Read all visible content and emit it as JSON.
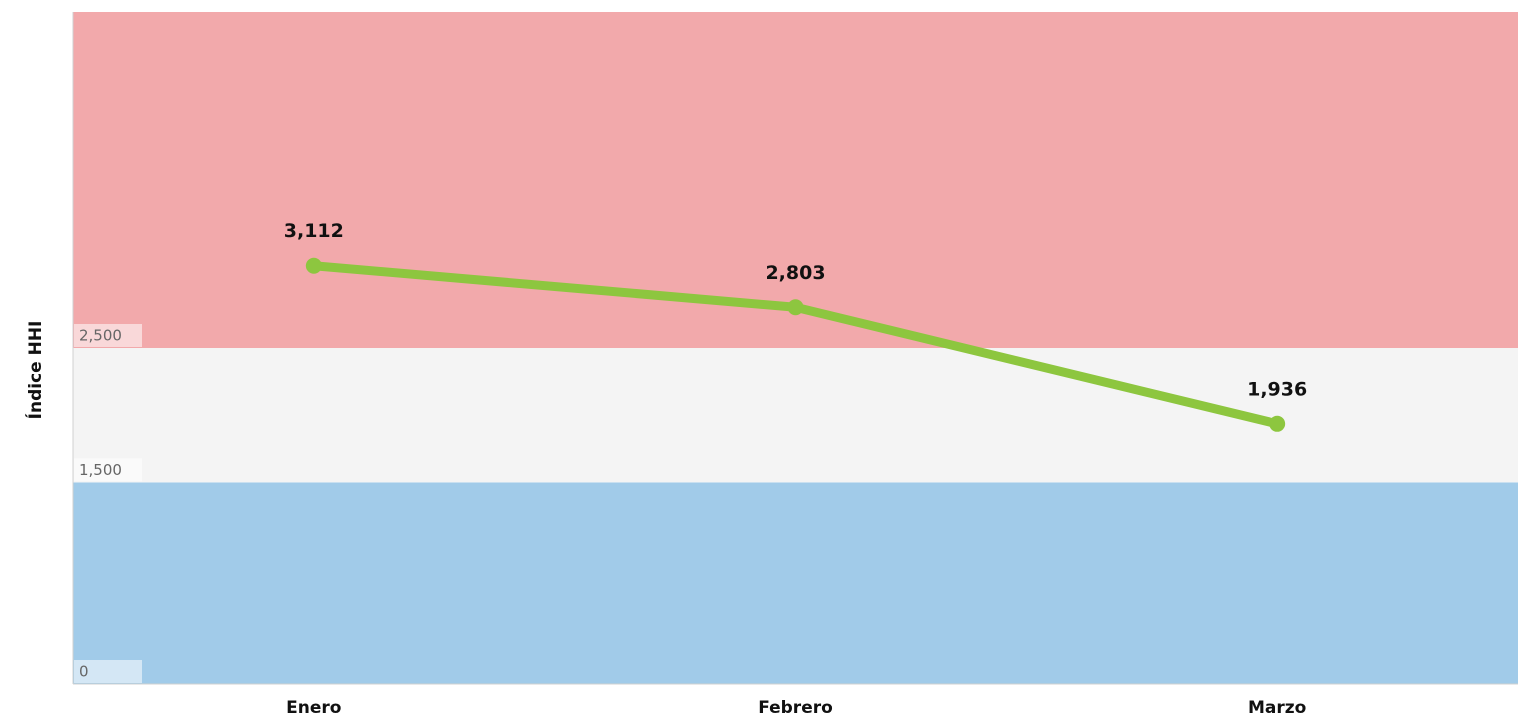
{
  "chart_data": {
    "type": "line",
    "y_label": "Índice HHI",
    "categories": [
      "Enero",
      "Febrero",
      "Marzo"
    ],
    "values": [
      3112,
      2803,
      1936
    ],
    "value_labels": [
      "3,112",
      "2,803",
      "1,936"
    ],
    "color": "#8dc63f",
    "ylim": [
      0,
      5000
    ],
    "yticks": [
      0,
      {
        "value": 1500,
        "label": "1,500"
      },
      {
        "value": 2500,
        "label": "2,500"
      }
    ],
    "bands": [
      {
        "from": 0,
        "to": 1500,
        "color": "#a1cbe9"
      },
      {
        "from": 1500,
        "to": 2500,
        "color": "#f4f4f4"
      },
      {
        "from": 2500,
        "to": 5000,
        "color": "#f2a9ab"
      }
    ]
  }
}
